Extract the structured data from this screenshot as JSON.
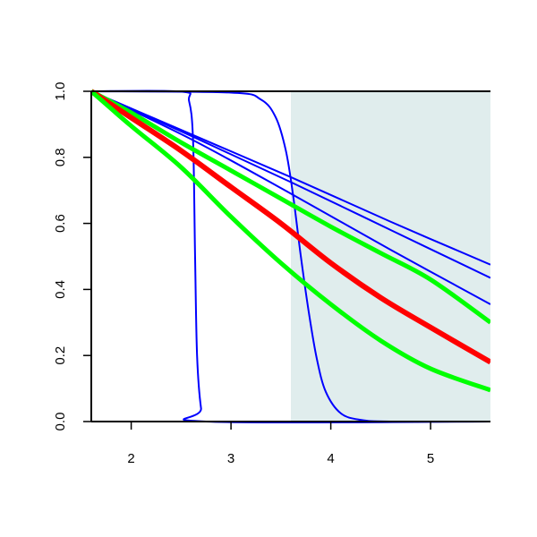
{
  "chart_data": {
    "type": "line",
    "title": "",
    "xlabel": "",
    "ylabel": "",
    "xlim": [
      1.6,
      5.6
    ],
    "ylim": [
      0,
      1
    ],
    "x_ticks": [
      2,
      3,
      4,
      5
    ],
    "x_tick_labels": [
      "2",
      "3",
      "4",
      "5"
    ],
    "y_ticks": [
      0,
      0.2,
      0.4,
      0.6,
      0.8,
      1.0
    ],
    "y_tick_labels": [
      "0.0",
      "0.2",
      "0.4",
      "0.6",
      "0.8",
      "1.0"
    ],
    "grid": false,
    "shaded_region": {
      "x_start": 3.6,
      "x_end": 5.6,
      "color": "#e0eded"
    },
    "series": [
      {
        "color": "#0000ff",
        "width": 2,
        "style": "steep-step-1",
        "points": [
          [
            1.6,
            1.0
          ],
          [
            2.5,
            0.999
          ],
          [
            2.58,
            0.97
          ],
          [
            2.62,
            0.85
          ],
          [
            2.64,
            0.5
          ],
          [
            2.66,
            0.2
          ],
          [
            2.7,
            0.04
          ],
          [
            2.75,
            0.0
          ],
          [
            5.6,
            0.0
          ]
        ]
      },
      {
        "color": "#0000ff",
        "width": 2,
        "style": "steep-step-2",
        "points": [
          [
            1.6,
            1.0
          ],
          [
            3.0,
            0.996
          ],
          [
            3.3,
            0.975
          ],
          [
            3.45,
            0.92
          ],
          [
            3.55,
            0.82
          ],
          [
            3.62,
            0.69
          ],
          [
            3.7,
            0.5
          ],
          [
            3.78,
            0.33
          ],
          [
            3.86,
            0.19
          ],
          [
            3.95,
            0.09
          ],
          [
            4.1,
            0.025
          ],
          [
            4.3,
            0.005
          ],
          [
            4.6,
            0.0
          ],
          [
            5.6,
            0.0
          ]
        ]
      },
      {
        "color": "#0000ff",
        "width": 2,
        "style": "linear-1",
        "points": [
          [
            1.6,
            1.0
          ],
          [
            2.6,
            0.87
          ],
          [
            3.6,
            0.74
          ],
          [
            4.6,
            0.605
          ],
          [
            5.6,
            0.475
          ]
        ]
      },
      {
        "color": "#0000ff",
        "width": 2,
        "style": "linear-2",
        "points": [
          [
            1.6,
            1.0
          ],
          [
            2.6,
            0.865
          ],
          [
            3.6,
            0.725
          ],
          [
            4.6,
            0.58
          ],
          [
            5.6,
            0.435
          ]
        ]
      },
      {
        "color": "#0000ff",
        "width": 2,
        "style": "linear-3",
        "points": [
          [
            1.6,
            1.0
          ],
          [
            2.6,
            0.855
          ],
          [
            3.6,
            0.69
          ],
          [
            4.6,
            0.52
          ],
          [
            5.6,
            0.355
          ]
        ]
      },
      {
        "color": "#00ff00",
        "width": 5,
        "style": "green-upper",
        "points": [
          [
            1.6,
            1.0
          ],
          [
            2.0,
            0.935
          ],
          [
            2.5,
            0.845
          ],
          [
            3.0,
            0.76
          ],
          [
            3.5,
            0.675
          ],
          [
            4.0,
            0.59
          ],
          [
            4.5,
            0.51
          ],
          [
            5.0,
            0.43
          ],
          [
            5.6,
            0.3
          ]
        ]
      },
      {
        "color": "#ff0000",
        "width": 6,
        "style": "red-center",
        "points": [
          [
            1.6,
            1.0
          ],
          [
            2.0,
            0.92
          ],
          [
            2.5,
            0.82
          ],
          [
            3.0,
            0.71
          ],
          [
            3.5,
            0.6
          ],
          [
            4.0,
            0.48
          ],
          [
            4.5,
            0.375
          ],
          [
            5.0,
            0.285
          ],
          [
            5.6,
            0.18
          ]
        ]
      },
      {
        "color": "#00ff00",
        "width": 5,
        "style": "green-lower",
        "points": [
          [
            1.6,
            1.0
          ],
          [
            2.0,
            0.895
          ],
          [
            2.5,
            0.77
          ],
          [
            3.0,
            0.62
          ],
          [
            3.5,
            0.48
          ],
          [
            4.0,
            0.355
          ],
          [
            4.5,
            0.245
          ],
          [
            5.0,
            0.16
          ],
          [
            5.6,
            0.095
          ]
        ]
      }
    ]
  }
}
